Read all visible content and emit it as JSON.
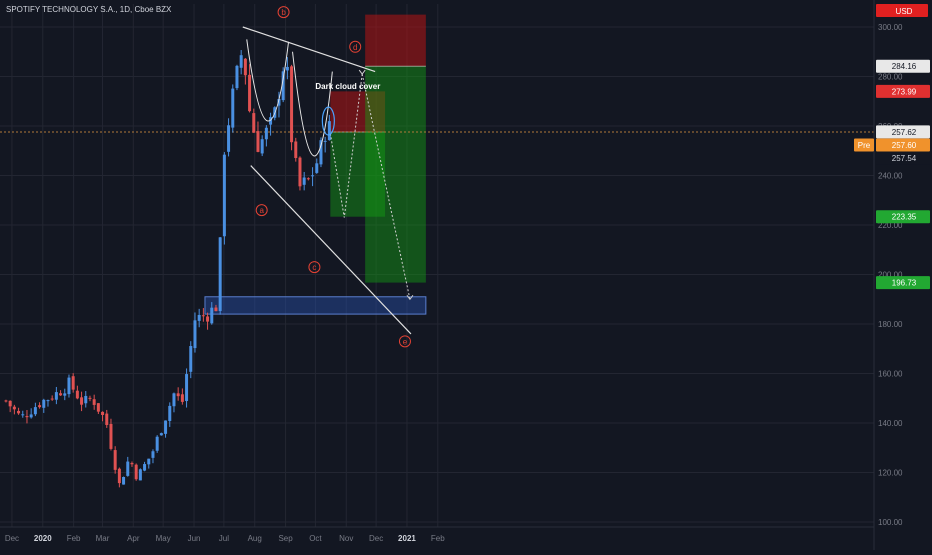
{
  "header": {
    "title": "SPOTIFY TECHNOLOGY S.A., 1D, Cboe BZX",
    "currency": "USD"
  },
  "colors": {
    "background": "#131722",
    "grid": "#232632",
    "up": "#4a90e2",
    "down": "#e05252",
    "annotation_red": "#e34234",
    "price_line": "#b07a3a"
  },
  "chart_data": {
    "type": "candlestick",
    "title": "SPOTIFY TECHNOLOGY S.A., 1D, Cboe BZX",
    "x_ticks": [
      "Dec",
      "2020",
      "Feb",
      "Mar",
      "Apr",
      "May",
      "Jun",
      "Jul",
      "Aug",
      "Sep",
      "Oct",
      "Nov",
      "Dec",
      "2021",
      "Feb"
    ],
    "y_ticks": [
      100,
      120,
      140,
      160,
      180,
      200,
      220,
      240,
      260,
      280,
      300
    ],
    "ylim": [
      100,
      310
    ],
    "grid": true,
    "price_path": [
      [
        "2019-11-25",
        149
      ],
      [
        "2019-12-10",
        142
      ],
      [
        "2019-12-28",
        148
      ],
      [
        "2020-01-15",
        152
      ],
      [
        "2020-01-28",
        156
      ],
      [
        "2020-02-10",
        148
      ],
      [
        "2020-02-20",
        150
      ],
      [
        "2020-03-05",
        140
      ],
      [
        "2020-03-18",
        115
      ],
      [
        "2020-03-28",
        126
      ],
      [
        "2020-04-05",
        118
      ],
      [
        "2020-04-20",
        128
      ],
      [
        "2020-05-01",
        140
      ],
      [
        "2020-05-12",
        152
      ],
      [
        "2020-05-20",
        148
      ],
      [
        "2020-06-02",
        182
      ],
      [
        "2020-06-15",
        184
      ],
      [
        "2020-06-25",
        188
      ],
      [
        "2020-07-01",
        250
      ],
      [
        "2020-07-08",
        268
      ],
      [
        "2020-07-20",
        292
      ],
      [
        "2020-07-28",
        262
      ],
      [
        "2020-08-05",
        252
      ],
      [
        "2020-08-20",
        262
      ],
      [
        "2020-09-01",
        290
      ],
      [
        "2020-09-08",
        250
      ],
      [
        "2020-09-15",
        235
      ],
      [
        "2020-09-25",
        238
      ],
      [
        "2020-10-05",
        248
      ],
      [
        "2020-10-13",
        262
      ],
      [
        "2020-10-16",
        257.6
      ]
    ],
    "price_labels": [
      {
        "text": "284.16",
        "value": 284.16,
        "style": "white"
      },
      {
        "text": "273.99",
        "value": 273.99,
        "style": "red"
      },
      {
        "text": "257.62",
        "value": 257.62,
        "style": "white"
      },
      {
        "text": "257.60",
        "value": 257.6,
        "style": "orange",
        "tag": "Pre"
      },
      {
        "text": "257.54",
        "value": 257.54,
        "style": "plain"
      },
      {
        "text": "223.35",
        "value": 223.35,
        "style": "green"
      },
      {
        "text": "196.73",
        "value": 196.73,
        "style": "green"
      }
    ],
    "trendlines": [
      {
        "name": "upper",
        "from": [
          "2020-07-20",
          300
        ],
        "to": [
          "2020-11-30",
          282
        ]
      },
      {
        "name": "lower",
        "from": [
          "2020-07-28",
          244
        ],
        "to": [
          "2021-01-05",
          176
        ]
      }
    ],
    "cup_arcs": [
      {
        "from": [
          "2020-07-24",
          295
        ],
        "bottom": [
          "2020-08-15",
          262
        ],
        "to": [
          "2020-09-04",
          294
        ]
      },
      {
        "from": [
          "2020-09-08",
          290
        ],
        "bottom": [
          "2020-09-30",
          248
        ],
        "to": [
          "2020-10-18",
          282
        ]
      }
    ],
    "support_zone": {
      "x_from": "2020-06-12",
      "x_to": "2021-01-20",
      "y_low": 184,
      "y_high": 191
    },
    "positions": [
      {
        "type": "short",
        "x_from": "2020-10-16",
        "x_to": "2020-12-10",
        "entry": 257.6,
        "stop": 273.99,
        "target": 223.35
      },
      {
        "type": "short",
        "x_from": "2020-11-20",
        "x_to": "2021-01-20",
        "entry": 284.16,
        "stop": 305,
        "target": 196.73
      }
    ],
    "projection_paths": [
      {
        "points": [
          [
            "2020-10-16",
            257
          ],
          [
            "2020-10-30",
            223
          ],
          [
            "2020-11-17",
            281
          ]
        ]
      },
      {
        "points": [
          [
            "2020-11-17",
            281
          ],
          [
            "2021-01-04",
            190
          ]
        ]
      }
    ],
    "wave_labels": [
      {
        "text": "a",
        "at": [
          "2020-08-08",
          226
        ]
      },
      {
        "text": "b",
        "at": [
          "2020-08-30",
          306
        ]
      },
      {
        "text": "c",
        "at": [
          "2020-09-30",
          203
        ]
      },
      {
        "text": "d",
        "at": [
          "2020-11-10",
          292
        ]
      },
      {
        "text": "e",
        "at": [
          "2020-12-30",
          173
        ]
      }
    ],
    "annotations": [
      {
        "text": "Dark cloud cover",
        "at": [
          "2020-10-01",
          275
        ]
      }
    ]
  }
}
